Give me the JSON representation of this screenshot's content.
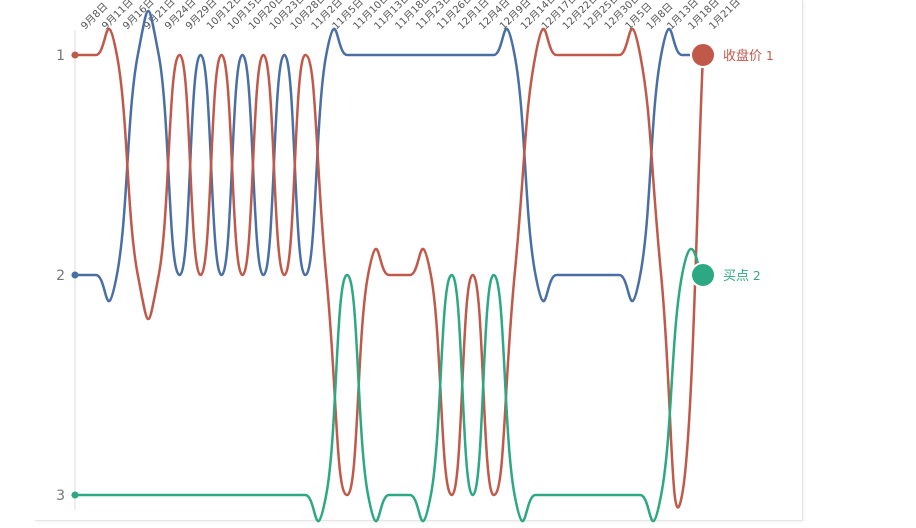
{
  "chart_data": {
    "type": "line",
    "categories": [
      "9月8日",
      "9月11日",
      "9月16日",
      "9月21日",
      "9月24日",
      "9月29日",
      "10月12日",
      "10月15日",
      "10月20日",
      "10月23日",
      "10月28日",
      "11月2日",
      "11月5日",
      "11月10日",
      "11月13日",
      "11月18日",
      "11月23日",
      "11月26日",
      "12月1日",
      "12月4日",
      "12月9日",
      "12月14日",
      "12月17日",
      "12月22日",
      "12月25日",
      "12月30日",
      "1月5日",
      "1月8日",
      "1月13日",
      "1月18日",
      "1月21日"
    ],
    "series": [
      {
        "color": "#4a6fa5",
        "values": [
          2,
          2,
          2,
          1,
          1,
          2,
          1,
          2,
          1,
          2,
          1,
          2,
          1,
          1,
          1,
          1,
          1,
          1,
          1,
          1,
          1,
          1,
          2,
          2,
          2,
          2,
          2,
          2,
          1,
          1,
          1
        ]
      },
      {
        "name": "收盘价",
        "color": "#c0594a",
        "values": [
          1,
          1,
          1,
          2,
          2,
          1,
          2,
          1,
          2,
          1,
          2,
          1,
          2,
          3,
          2,
          2,
          2,
          2,
          3,
          2,
          3,
          2,
          1,
          1,
          1,
          1,
          1,
          1,
          2,
          3,
          1
        ]
      },
      {
        "name": "买点",
        "color": "#2ca882",
        "values": [
          3,
          3,
          3,
          3,
          3,
          3,
          3,
          3,
          3,
          3,
          3,
          3,
          3,
          2,
          3,
          3,
          3,
          3,
          2,
          3,
          2,
          3,
          3,
          3,
          3,
          3,
          3,
          3,
          3,
          2,
          2
        ]
      }
    ],
    "ylim": [
      1,
      3
    ],
    "yticks": [
      1,
      2,
      3
    ],
    "inverted": true
  }
}
